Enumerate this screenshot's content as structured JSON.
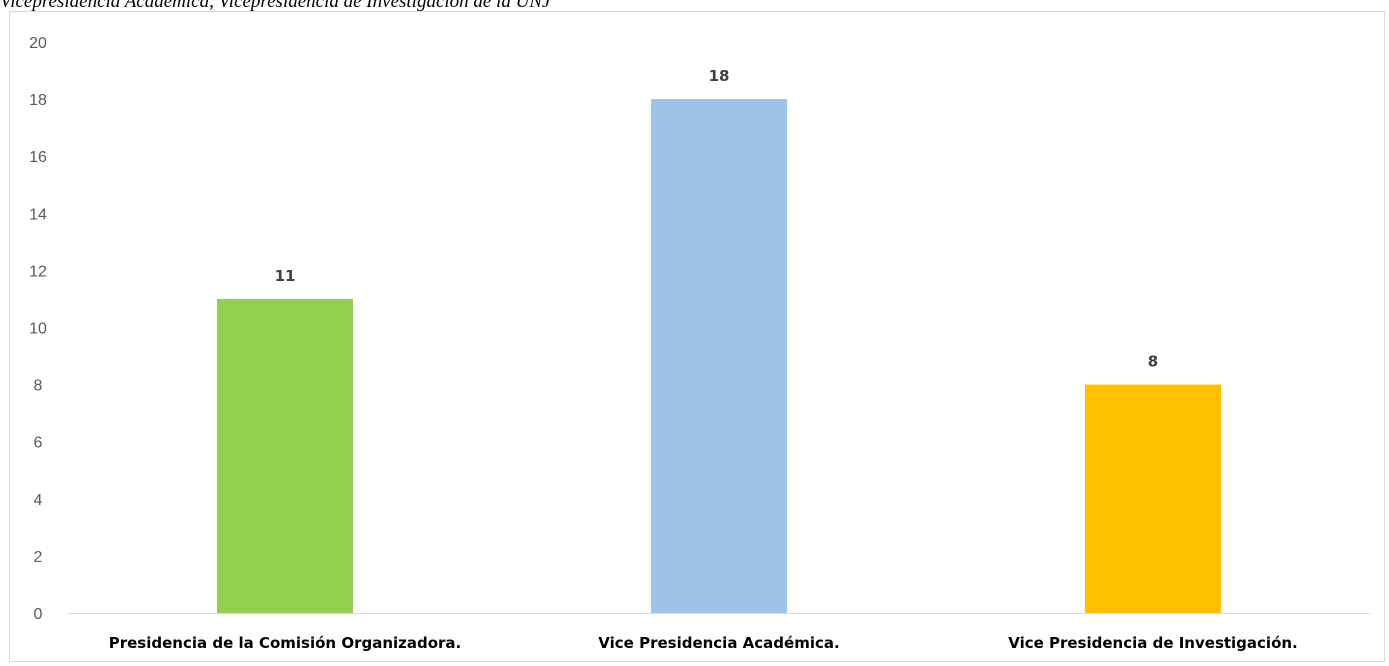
{
  "caption_fragment": "Vicepresidencia Académica, Vicepresidencia de Investigación de la UNJ",
  "chart_data": {
    "type": "bar",
    "categories": [
      "Presidencia de la Comisión Organizadora.",
      "Vice Presidencia Académica.",
      "Vice Presidencia de Investigación."
    ],
    "values": [
      11,
      18,
      8
    ],
    "bar_colors": [
      "#92d050",
      "#9dc3e6",
      "#ffc000"
    ],
    "title": "",
    "xlabel": "",
    "ylabel": "",
    "ylim": [
      0,
      20
    ],
    "y_ticks": [
      "0",
      "2",
      "4",
      "6",
      "8",
      "10",
      "12",
      "14",
      "16",
      "18",
      "20"
    ],
    "grid": false,
    "legend": "none",
    "data_labels": [
      "11",
      "18",
      "8"
    ]
  }
}
